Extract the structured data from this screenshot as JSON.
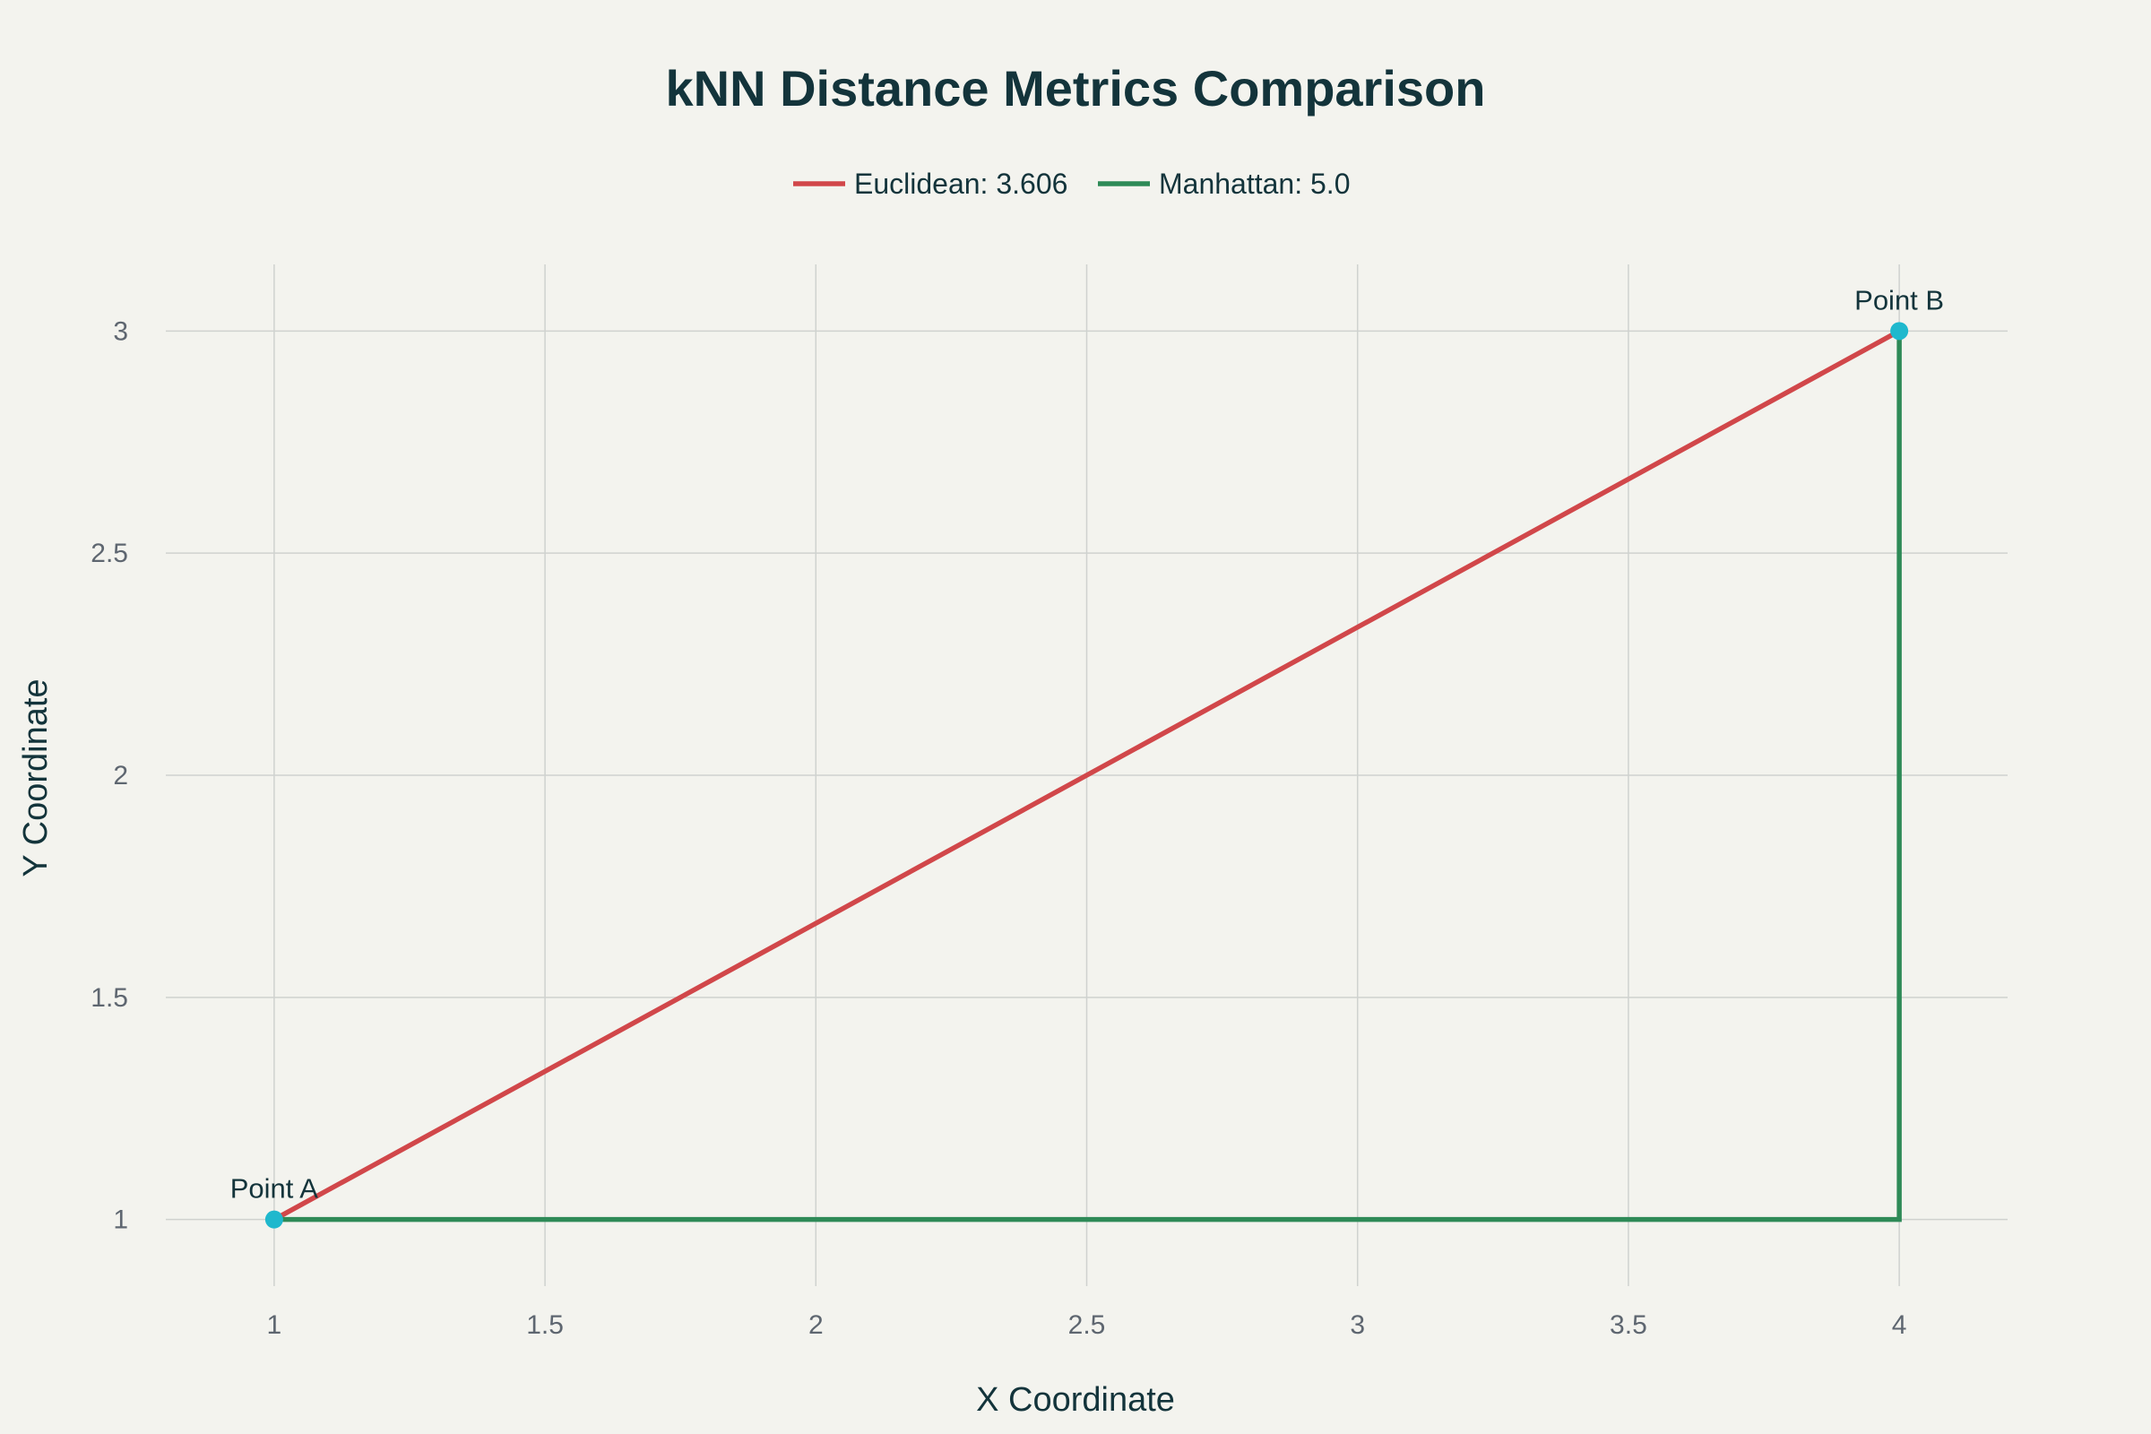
{
  "chart_data": {
    "type": "line",
    "title": "kNN Distance Metrics Comparison",
    "xlabel": "X Coordinate",
    "ylabel": "Y Coordinate",
    "xlim": [
      0.8,
      4.2
    ],
    "ylim": [
      0.85,
      3.15
    ],
    "xticks": [
      1,
      1.5,
      2,
      2.5,
      3,
      3.5,
      4
    ],
    "xtick_labels": [
      "1",
      "1.5",
      "2",
      "2.5",
      "3",
      "3.5",
      "4"
    ],
    "yticks": [
      1,
      1.5,
      2,
      2.5,
      3
    ],
    "ytick_labels": [
      "1",
      "1.5",
      "2",
      "2.5",
      "3"
    ],
    "grid": true,
    "legend_position": "top-center",
    "series": [
      {
        "name": "Euclidean: 3.606",
        "color": "#D1474A",
        "x": [
          1,
          4
        ],
        "y": [
          1,
          3
        ]
      },
      {
        "name": "Manhattan: 5.0",
        "color": "#2E8A57",
        "x": [
          1,
          4,
          4
        ],
        "y": [
          1,
          1,
          3
        ]
      }
    ],
    "points": [
      {
        "label": "Point A",
        "x": 1,
        "y": 1
      },
      {
        "label": "Point B",
        "x": 4,
        "y": 3
      }
    ],
    "point_color": "#1FB8CD",
    "background": "#F3F3EE"
  }
}
